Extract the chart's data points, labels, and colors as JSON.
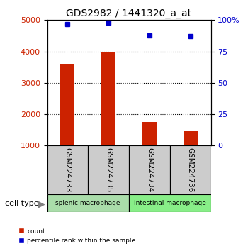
{
  "title": "GDS2982 / 1441320_a_at",
  "samples": [
    "GSM224733",
    "GSM224735",
    "GSM224734",
    "GSM224736"
  ],
  "counts": [
    3600,
    4000,
    1750,
    1450
  ],
  "percentiles": [
    97,
    98,
    88,
    87
  ],
  "ylim_left": [
    1000,
    5000
  ],
  "ylim_right": [
    0,
    100
  ],
  "yticks_left": [
    1000,
    2000,
    3000,
    4000,
    5000
  ],
  "yticks_right": [
    0,
    25,
    50,
    75,
    100
  ],
  "bar_color": "#cc2200",
  "dot_color": "#0000cc",
  "cell_type_labels": [
    "splenic macrophage",
    "intestinal macrophage"
  ],
  "cell_type_colors": [
    "#aaddaa",
    "#88ee88"
  ],
  "group_bg_color": "#cccccc"
}
